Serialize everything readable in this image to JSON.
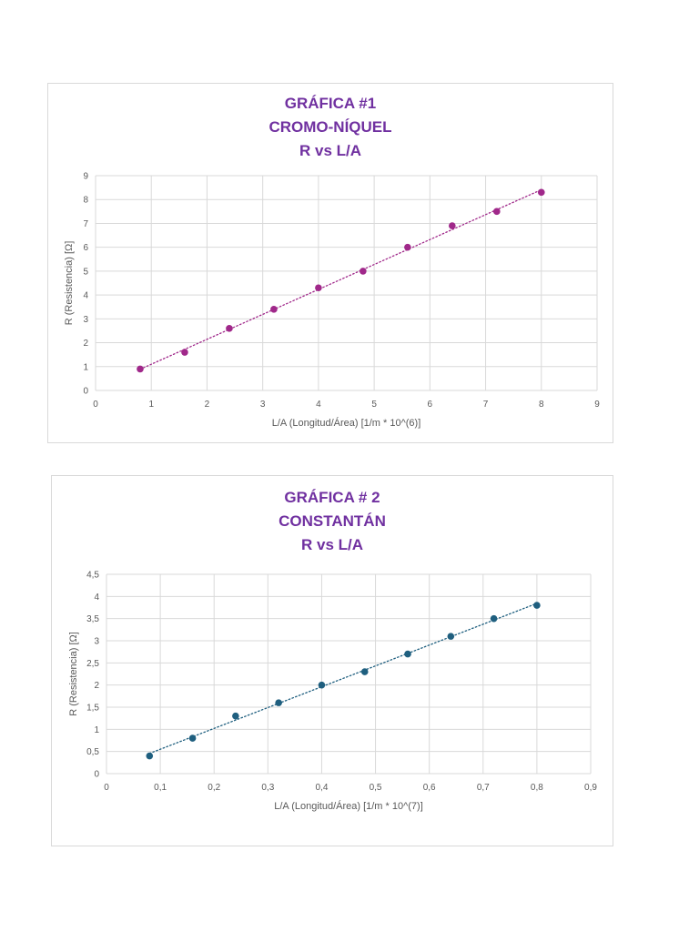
{
  "chart_data": [
    {
      "type": "scatter",
      "title_lines": [
        "GRÁFICA #1",
        "CROMO-NÍQUEL",
        "R vs L/A"
      ],
      "xlabel": "L/A (Longitud/Área)  [1/m * 10^(6)]",
      "ylabel": "R (Resistencia) [Ω]",
      "xlim": [
        0,
        9
      ],
      "ylim": [
        0,
        9
      ],
      "xticks": [
        0,
        1,
        2,
        3,
        4,
        5,
        6,
        7,
        8,
        9
      ],
      "yticks": [
        0,
        1,
        2,
        3,
        4,
        5,
        6,
        7,
        8,
        9
      ],
      "xtick_labels": [
        "0",
        "1",
        "2",
        "3",
        "4",
        "5",
        "6",
        "7",
        "8",
        "9"
      ],
      "ytick_labels": [
        "0",
        "1",
        "2",
        "3",
        "4",
        "5",
        "6",
        "7",
        "8",
        "9"
      ],
      "grid": true,
      "trendline": "linear dotted",
      "color": "#a0288a",
      "series": [
        {
          "x": [
            0.8,
            1.6,
            2.4,
            3.2,
            4.0,
            4.8,
            5.6,
            6.4,
            7.2,
            8.0
          ],
          "y": [
            0.9,
            1.6,
            2.6,
            3.4,
            4.3,
            5.0,
            6.0,
            6.9,
            7.5,
            8.3
          ]
        }
      ]
    },
    {
      "type": "scatter",
      "title_lines": [
        "GRÁFICA # 2",
        "CONSTANTÁN",
        "R vs L/A"
      ],
      "xlabel": "L/A (Longitud/Área)  [1/m * 10^(7)]",
      "ylabel": "R (Resistencia) [Ω]",
      "xlim": [
        0,
        0.9
      ],
      "ylim": [
        0,
        4.5
      ],
      "xticks": [
        0,
        0.1,
        0.2,
        0.3,
        0.4,
        0.5,
        0.6,
        0.7,
        0.8,
        0.9
      ],
      "yticks": [
        0,
        0.5,
        1,
        1.5,
        2,
        2.5,
        3,
        3.5,
        4,
        4.5
      ],
      "xtick_labels": [
        "0",
        "0,1",
        "0,2",
        "0,3",
        "0,4",
        "0,5",
        "0,6",
        "0,7",
        "0,8",
        "0,9"
      ],
      "ytick_labels": [
        "0",
        "0,5",
        "1",
        "1,5",
        "2",
        "2,5",
        "3",
        "3,5",
        "4",
        "4,5"
      ],
      "grid": true,
      "trendline": "linear dotted",
      "color": "#1f5f7f",
      "series": [
        {
          "x": [
            0.08,
            0.16,
            0.24,
            0.32,
            0.4,
            0.48,
            0.56,
            0.64,
            0.72,
            0.8
          ],
          "y": [
            0.4,
            0.8,
            1.3,
            1.6,
            2.0,
            2.3,
            2.7,
            3.1,
            3.5,
            3.8
          ]
        }
      ]
    }
  ],
  "title_color": "#7030a0"
}
